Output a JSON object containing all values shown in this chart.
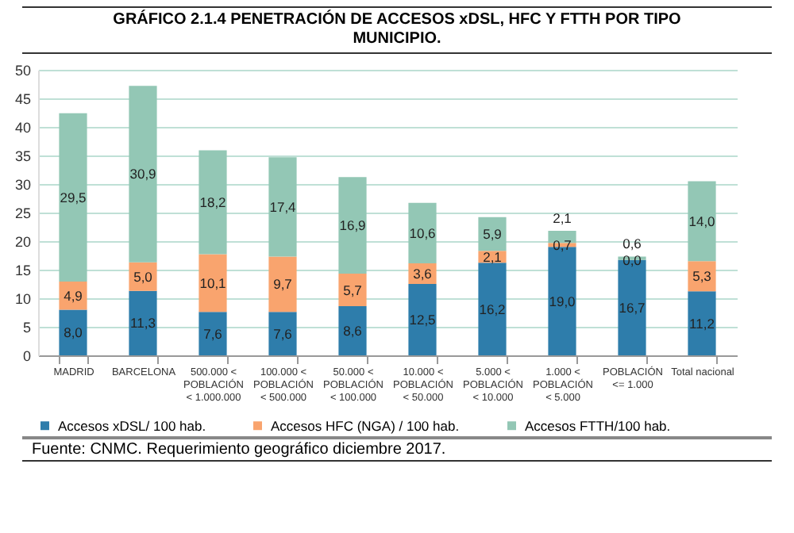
{
  "chart_data": {
    "type": "bar",
    "stacked": true,
    "title": "GRÁFICO 2.1.4 PENETRACIÓN DE ACCESOS xDSL, HFC Y FTTH POR TIPO MUNICIPIO.",
    "categories": [
      "MADRID",
      "BARCELONA",
      "500.000 <\nPOBLACIÓN\n< 1.000.000",
      "100.000 <\nPOBLACIÓN\n< 500.000",
      "50.000 <\nPOBLACIÓN\n< 100.000",
      "10.000 <\nPOBLACIÓN\n< 50.000",
      "5.000 <\nPOBLACIÓN\n< 10.000",
      "1.000 <\nPOBLACIÓN\n< 5.000",
      "POBLACIÓN\n<= 1.000",
      "Total nacional"
    ],
    "series": [
      {
        "name": "Accesos xDSL/ 100 hab.",
        "color": "#2e7dab",
        "values": [
          8.0,
          11.3,
          7.6,
          7.6,
          8.6,
          12.5,
          16.2,
          19.0,
          16.7,
          11.2
        ],
        "value_labels": [
          "8,0",
          "11,3",
          "7,6",
          "7,6",
          "8,6",
          "12,5",
          "16,2",
          "19,0",
          "16,7",
          "11,2"
        ]
      },
      {
        "name": "Accesos HFC (NGA) / 100 hab.",
        "color": "#f9a46e",
        "values": [
          4.9,
          5.0,
          10.1,
          9.7,
          5.7,
          3.6,
          2.1,
          0.7,
          0.0,
          5.3
        ],
        "value_labels": [
          "4,9",
          "5,0",
          "10,1",
          "9,7",
          "5,7",
          "3,6",
          "2,1",
          "0,7",
          "0,0",
          "5,3"
        ]
      },
      {
        "name": "Accesos FTTH/100 hab.",
        "color": "#93c7b5",
        "values": [
          29.5,
          30.9,
          18.2,
          17.4,
          16.9,
          10.6,
          5.9,
          2.1,
          0.6,
          14.0
        ],
        "value_labels": [
          "29,5",
          "30,9",
          "18,2",
          "17,4",
          "16,9",
          "10,6",
          "5,9",
          "2,1",
          "0,6",
          "14,0"
        ]
      }
    ],
    "ylim": [
      0,
      50
    ],
    "yticks": [
      0,
      5,
      10,
      15,
      20,
      25,
      30,
      35,
      40,
      45,
      50
    ],
    "grid": "y",
    "legend": "bottom",
    "annotations": [
      "Fuente: CNMC. Requerimiento geográfico diciembre 2017."
    ]
  }
}
